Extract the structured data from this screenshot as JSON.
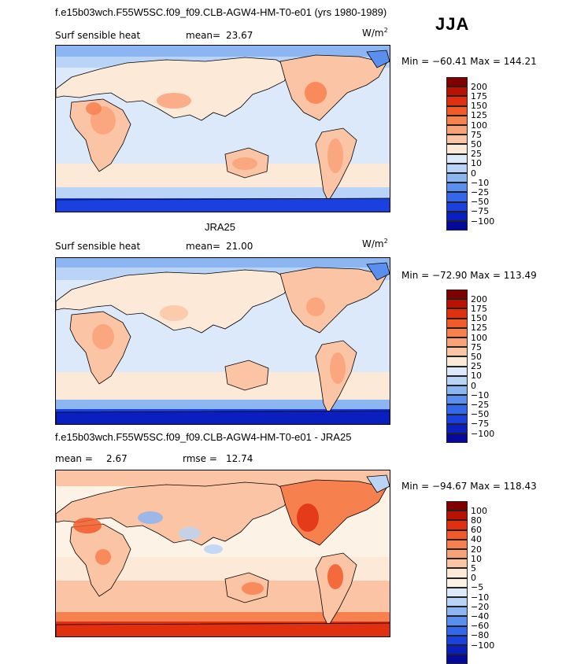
{
  "header": {
    "title": "f.e15b03wch.F55W5SC.f09_f09.CLB-AGW4-HM-T0-e01 (yrs 1980-1989)",
    "season": "JJA"
  },
  "colors": {
    "cb1": [
      "#800000",
      "#bb1100",
      "#e03010",
      "#f25a2a",
      "#f7804f",
      "#f9a27a",
      "#fbc4a4",
      "#fde9d8",
      "#dce9fb",
      "#b9d4f6",
      "#8cb6f2",
      "#5a8ff0",
      "#3367ec",
      "#1a40e0",
      "#0a1fbf",
      "#05099a"
    ],
    "cb3": [
      "#800000",
      "#bb1100",
      "#e03010",
      "#f25a2a",
      "#f7804f",
      "#f9a27a",
      "#fbc4a4",
      "#fde9d8",
      "#fdf2e6",
      "#dce9fb",
      "#b9d4f6",
      "#8cb6f2",
      "#5a8ff0",
      "#3367ec",
      "#1a40e0",
      "#0a1fbf",
      "#05099a"
    ]
  },
  "chart_data": [
    {
      "type": "heatmap",
      "variable": "Surf sensible heat",
      "mean_label": "mean=",
      "mean": "23.67",
      "units_base": "W/m",
      "units_exp": "2",
      "min_label": "Min =",
      "min": "−60.41",
      "max_label": "Max =",
      "max": "144.21",
      "colorbar_ticks": [
        "200",
        "175",
        "150",
        "125",
        "100",
        "75",
        "50",
        "25",
        "10",
        "0",
        "−10",
        "−25",
        "−50",
        "−75",
        "−100"
      ]
    },
    {
      "type": "heatmap",
      "case_title": "JRA25",
      "variable": "Surf sensible heat",
      "mean_label": "mean=",
      "mean": "21.00",
      "units_base": "W/m",
      "units_exp": "2",
      "min_label": "Min =",
      "min": "−72.90",
      "max_label": "Max =",
      "max": "113.49",
      "colorbar_ticks": [
        "200",
        "175",
        "150",
        "125",
        "100",
        "75",
        "50",
        "25",
        "10",
        "0",
        "−10",
        "−25",
        "−50",
        "−75",
        "−100"
      ]
    },
    {
      "type": "heatmap",
      "case_title": "f.e15b03wch.F55W5SC.f09_f09.CLB-AGW4-HM-T0-e01 - JRA25",
      "mean_label": "mean =",
      "mean": "2.67",
      "rmse_label": "rmse =",
      "rmse": "12.74",
      "min_label": "Min =",
      "min": "−94.67",
      "max_label": "Max =",
      "max": "118.43",
      "colorbar_ticks": [
        "100",
        "80",
        "60",
        "40",
        "20",
        "10",
        "5",
        "0",
        "−5",
        "−10",
        "−20",
        "−40",
        "−60",
        "−80",
        "−100"
      ]
    }
  ]
}
